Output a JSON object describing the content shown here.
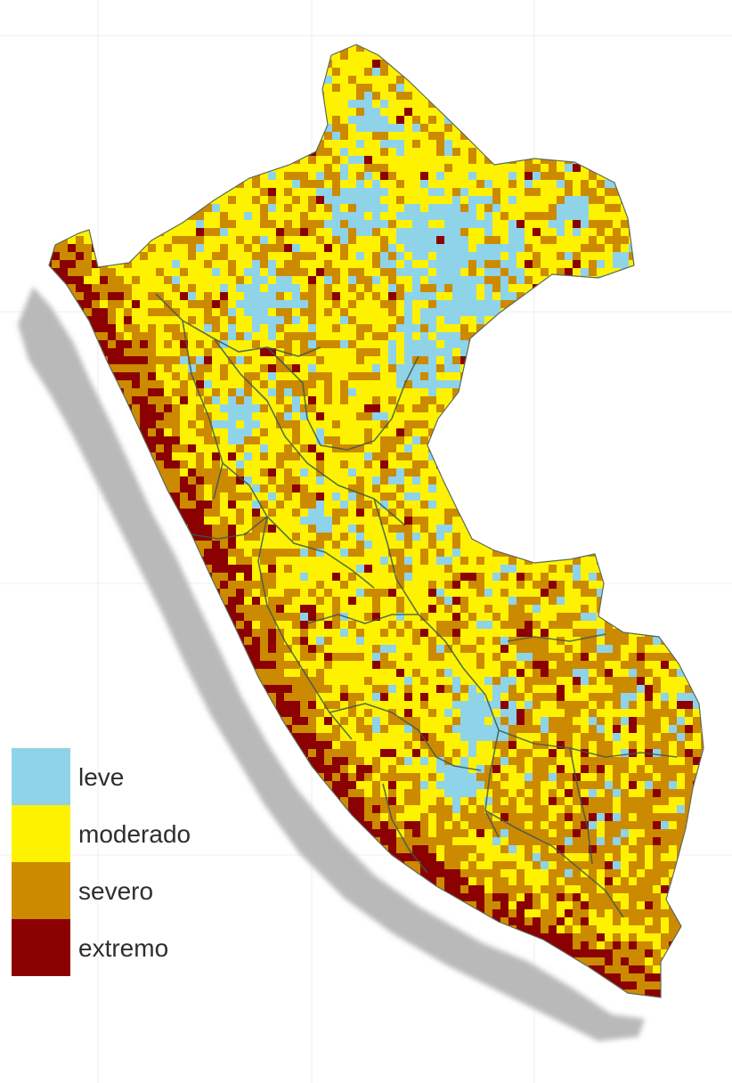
{
  "map": {
    "region": "Peru",
    "background_color": "#ffffff",
    "shadow_color": "#b9b9b9",
    "boundary_color": "#3d5a4f"
  },
  "legend": {
    "items": [
      {
        "label": "leve",
        "color": "#8fd3e8"
      },
      {
        "label": "moderado",
        "color": "#fff200"
      },
      {
        "label": "severo",
        "color": "#cc8a00"
      },
      {
        "label": "extremo",
        "color": "#8b0000"
      }
    ]
  }
}
